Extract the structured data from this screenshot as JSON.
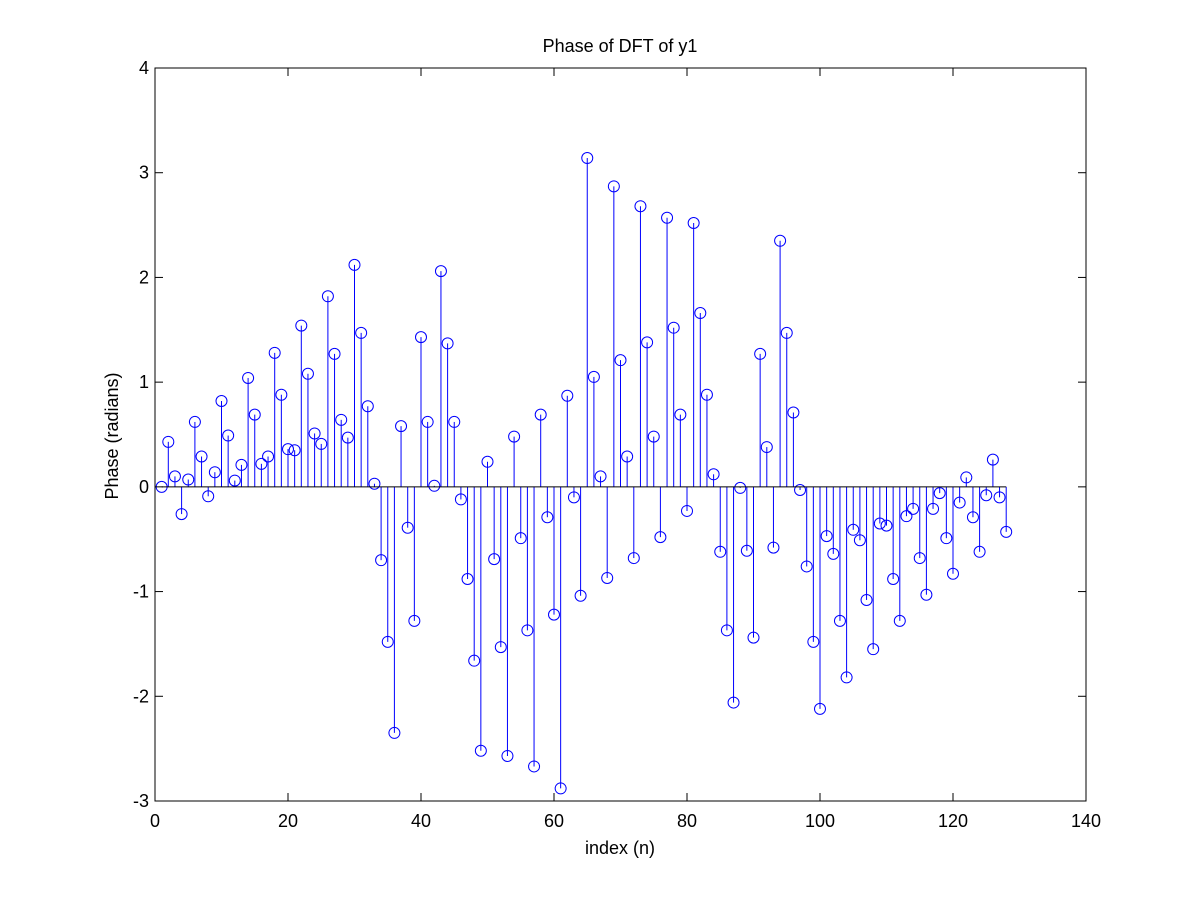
{
  "chart_data": {
    "type": "stem",
    "title": "Phase of DFT of y1",
    "xlabel": "index (n)",
    "ylabel": "Phase (radians)",
    "xlim": [
      0,
      140
    ],
    "ylim": [
      -3,
      4
    ],
    "xticks": [
      0,
      20,
      40,
      60,
      80,
      100,
      120,
      140
    ],
    "yticks": [
      -3,
      -2,
      -1,
      0,
      1,
      2,
      3,
      4
    ],
    "grid": false,
    "legend": "none",
    "colors": {
      "stem": "#0000ff",
      "baseline": "#000000",
      "axes": "#000000",
      "background": "#ffffff"
    },
    "marker": "circle-open",
    "x": [
      1,
      2,
      3,
      4,
      5,
      6,
      7,
      8,
      9,
      10,
      11,
      12,
      13,
      14,
      15,
      16,
      17,
      18,
      19,
      20,
      21,
      22,
      23,
      24,
      25,
      26,
      27,
      28,
      29,
      30,
      31,
      32,
      33,
      34,
      35,
      36,
      37,
      38,
      39,
      40,
      41,
      42,
      43,
      44,
      45,
      46,
      47,
      48,
      49,
      50,
      51,
      52,
      53,
      54,
      55,
      56,
      57,
      58,
      59,
      60,
      61,
      62,
      63,
      64,
      65,
      66,
      67,
      68,
      69,
      70,
      71,
      72,
      73,
      74,
      75,
      76,
      77,
      78,
      79,
      80,
      81,
      82,
      83,
      84,
      85,
      86,
      87,
      88,
      89,
      90,
      91,
      92,
      93,
      94,
      95,
      96,
      97,
      98,
      99,
      100,
      101,
      102,
      103,
      104,
      105,
      106,
      107,
      108,
      109,
      110,
      111,
      112,
      113,
      114,
      115,
      116,
      117,
      118,
      119,
      120,
      121,
      122,
      123,
      124,
      125,
      126,
      127,
      128
    ],
    "y": [
      0.0,
      0.43,
      0.1,
      -0.26,
      0.07,
      0.62,
      0.29,
      -0.09,
      0.14,
      0.82,
      0.49,
      0.06,
      0.21,
      1.04,
      0.69,
      0.22,
      0.29,
      1.28,
      0.88,
      0.36,
      0.35,
      1.54,
      1.08,
      0.51,
      0.41,
      1.82,
      1.27,
      0.64,
      0.47,
      2.12,
      1.47,
      0.77,
      0.03,
      -0.7,
      -1.48,
      -2.35,
      0.58,
      -0.39,
      -1.28,
      1.43,
      0.62,
      0.01,
      2.06,
      1.37,
      0.62,
      -0.12,
      -0.88,
      -1.66,
      -2.52,
      0.24,
      -0.69,
      -1.53,
      -2.57,
      0.48,
      -0.49,
      -1.37,
      -2.67,
      0.69,
      -0.29,
      -1.22,
      -2.88,
      0.87,
      -0.1,
      -1.04,
      3.14,
      1.05,
      0.1,
      -0.87,
      2.87,
      1.21,
      0.29,
      -0.68,
      2.68,
      1.38,
      0.48,
      -0.48,
      2.57,
      1.52,
      0.69,
      -0.23,
      2.52,
      1.66,
      0.88,
      0.12,
      -0.62,
      -1.37,
      -2.06,
      -0.01,
      -0.61,
      -1.44,
      1.27,
      0.38,
      -0.58,
      2.35,
      1.47,
      0.71,
      -0.03,
      -0.76,
      -1.48,
      -2.12,
      -0.47,
      -0.64,
      -1.28,
      -1.82,
      -0.41,
      -0.51,
      -1.08,
      -1.55,
      -0.35,
      -0.37,
      -0.88,
      -1.28,
      -0.28,
      -0.21,
      -0.68,
      -1.03,
      -0.21,
      -0.06,
      -0.49,
      -0.83,
      -0.15,
      0.09,
      -0.29,
      -0.62,
      -0.08,
      0.26,
      -0.1,
      -0.43
    ]
  }
}
